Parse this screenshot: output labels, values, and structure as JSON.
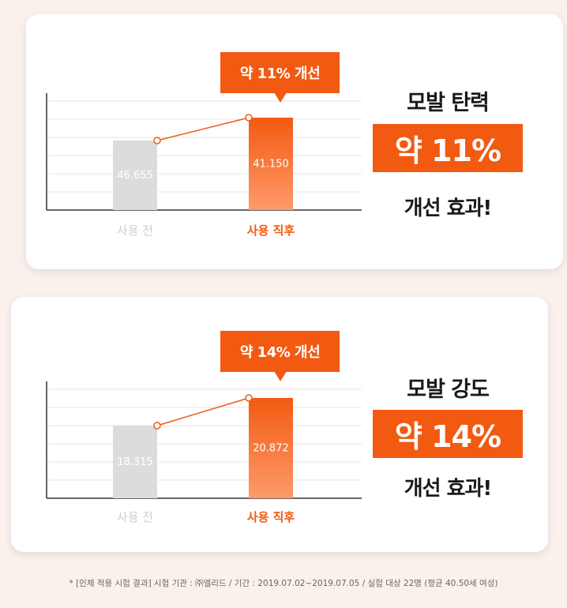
{
  "panels": [
    {
      "callout": "약 11% 개선",
      "title": "모발 탄력",
      "badge": "약 11%",
      "footer": "개선 효과!",
      "chart_data": {
        "type": "bar",
        "categories": [
          "사용 전",
          "사용 직후"
        ],
        "values": [
          46.655,
          41.15
        ],
        "data_labels": [
          "46.655",
          "41.150"
        ],
        "bar_colors": [
          "#dcdcdc",
          "#f25a12"
        ]
      }
    },
    {
      "callout": "약 14% 개선",
      "title": "모발 강도",
      "badge": "약 14%",
      "footer": "개선 효과!",
      "chart_data": {
        "type": "bar",
        "categories": [
          "사용 전",
          "사용 직후"
        ],
        "values": [
          18.315,
          20.872
        ],
        "data_labels": [
          "18.315",
          "20.872"
        ],
        "bar_colors": [
          "#dcdcdc",
          "#f25a12"
        ]
      }
    }
  ],
  "footnote": "* [인체 적용 시험 결과]  시험 기관 : ㈜엘리드 / 기간 : 2019.07.02~2019.07.05 / 실험 대상 22명 (평균 40.50세 여성)",
  "colors": {
    "accent": "#f25a12",
    "muted_text": "#cfcfcf",
    "gridline": "#e6e6e6"
  }
}
